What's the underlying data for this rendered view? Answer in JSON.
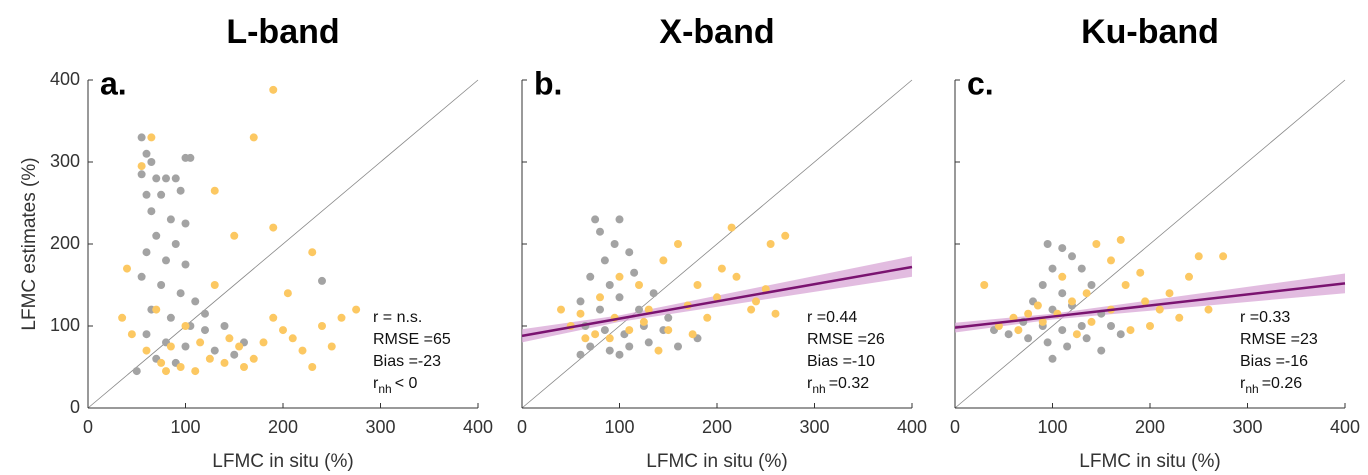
{
  "chart_data": [
    {
      "type": "scatter",
      "title": "L-band",
      "panel_label": "a.",
      "x_label": "LFMC in situ (%)",
      "y_label": "LFMC estimates (%)",
      "xlim": [
        0,
        400
      ],
      "ylim": [
        0,
        400
      ],
      "xticks": [
        0,
        100,
        200,
        300,
        400
      ],
      "yticks": [
        0,
        100,
        200,
        300,
        400
      ],
      "show_ytick_labels": true,
      "series": [
        {
          "color": "#a3a3a3",
          "x": [
            55,
            60,
            65,
            55,
            70,
            80,
            90,
            100,
            105,
            60,
            75,
            95,
            65,
            85,
            100,
            70,
            90,
            60,
            80,
            100,
            55,
            75,
            95,
            110,
            65,
            85,
            105,
            120,
            60,
            80,
            100,
            130,
            70,
            90,
            150,
            140,
            120,
            50,
            240,
            160
          ],
          "y": [
            330,
            310,
            300,
            285,
            280,
            280,
            280,
            305,
            305,
            260,
            260,
            265,
            240,
            230,
            225,
            210,
            200,
            190,
            180,
            175,
            160,
            150,
            140,
            130,
            120,
            110,
            100,
            95,
            90,
            80,
            75,
            70,
            60,
            55,
            65,
            100,
            115,
            45,
            155,
            80
          ]
        },
        {
          "color": "#fcc862",
          "x": [
            40,
            55,
            190,
            170,
            65,
            130,
            230,
            190,
            150,
            35,
            45,
            60,
            75,
            95,
            110,
            125,
            140,
            160,
            180,
            200,
            220,
            240,
            260,
            275,
            250,
            210,
            170,
            115,
            100,
            85,
            70,
            130,
            155,
            190,
            230,
            80,
            145,
            205
          ],
          "y": [
            170,
            295,
            388,
            330,
            330,
            265,
            190,
            220,
            210,
            110,
            90,
            70,
            55,
            50,
            45,
            60,
            55,
            50,
            80,
            95,
            70,
            100,
            110,
            120,
            75,
            85,
            60,
            80,
            100,
            75,
            120,
            150,
            75,
            110,
            50,
            45,
            85,
            140
          ]
        }
      ],
      "stats": [
        "r = n.s.",
        "RMSE =65",
        "Bias =-23"
      ],
      "rnh": {
        "symbol": "r",
        "sub": "nh",
        "text": "< 0"
      }
    },
    {
      "type": "scatter",
      "title": "X-band",
      "panel_label": "b.",
      "x_label": "LFMC in situ (%)",
      "xlim": [
        0,
        400
      ],
      "ylim": [
        0,
        400
      ],
      "xticks": [
        0,
        100,
        200,
        300,
        400
      ],
      "yticks": [
        0,
        100,
        200,
        300,
        400
      ],
      "show_ytick_labels": false,
      "series": [
        {
          "color": "#a3a3a3",
          "x": [
            75,
            80,
            100,
            95,
            110,
            85,
            70,
            90,
            115,
            60,
            80,
            100,
            120,
            135,
            65,
            85,
            105,
            125,
            145,
            70,
            90,
            110,
            130,
            160,
            60,
            100,
            150,
            180
          ],
          "y": [
            230,
            215,
            230,
            200,
            190,
            180,
            160,
            150,
            165,
            130,
            120,
            135,
            120,
            140,
            100,
            95,
            90,
            100,
            95,
            75,
            70,
            75,
            80,
            75,
            65,
            65,
            110,
            85
          ]
        },
        {
          "color": "#fcc862",
          "x": [
            40,
            50,
            60,
            75,
            90,
            110,
            130,
            145,
            160,
            180,
            200,
            220,
            240,
            255,
            270,
            215,
            235,
            190,
            170,
            150,
            125,
            95,
            80,
            100,
            120,
            65,
            175,
            205,
            250,
            140,
            260
          ],
          "y": [
            120,
            100,
            115,
            90,
            85,
            95,
            120,
            180,
            200,
            150,
            135,
            160,
            130,
            200,
            210,
            220,
            120,
            110,
            125,
            95,
            105,
            110,
            135,
            160,
            150,
            85,
            90,
            170,
            145,
            70,
            115
          ]
        }
      ],
      "fit": {
        "color": "#7a1370",
        "band_color": "#d8a6d6",
        "x": [
          0,
          100,
          400
        ],
        "y": [
          88,
          109,
          172
        ],
        "ci_low": [
          80,
          105,
          160
        ],
        "ci_high": [
          96,
          113,
          185
        ]
      },
      "stats": [
        "r =0.44",
        "RMSE =26",
        "Bias =-10"
      ],
      "rnh": {
        "symbol": "r",
        "sub": "nh",
        "text": "=0.32"
      }
    },
    {
      "type": "scatter",
      "title": "Ku-band",
      "panel_label": "c.",
      "x_label": "LFMC in situ (%)",
      "xlim": [
        0,
        400
      ],
      "ylim": [
        0,
        400
      ],
      "xticks": [
        0,
        100,
        200,
        300,
        400
      ],
      "yticks": [
        0,
        100,
        200,
        300,
        400
      ],
      "show_ytick_labels": false,
      "series": [
        {
          "color": "#a3a3a3",
          "x": [
            95,
            110,
            120,
            100,
            130,
            90,
            110,
            140,
            80,
            100,
            120,
            150,
            70,
            90,
            110,
            130,
            160,
            75,
            95,
            115,
            135,
            55,
            100,
            150,
            170,
            40
          ],
          "y": [
            200,
            195,
            185,
            170,
            170,
            150,
            140,
            150,
            130,
            120,
            125,
            115,
            105,
            100,
            95,
            100,
            100,
            85,
            80,
            75,
            85,
            90,
            60,
            70,
            90,
            95
          ]
        },
        {
          "color": "#fcc862",
          "x": [
            30,
            45,
            60,
            75,
            90,
            105,
            120,
            135,
            145,
            160,
            175,
            190,
            210,
            230,
            250,
            275,
            240,
            220,
            200,
            180,
            160,
            140,
            125,
            110,
            85,
            65,
            195,
            260,
            170
          ],
          "y": [
            150,
            100,
            110,
            115,
            105,
            115,
            130,
            140,
            200,
            180,
            150,
            165,
            120,
            110,
            185,
            185,
            160,
            140,
            100,
            95,
            120,
            105,
            90,
            160,
            125,
            95,
            130,
            120,
            205
          ]
        }
      ],
      "fit": {
        "color": "#7a1370",
        "band_color": "#d8a6d6",
        "x": [
          0,
          100,
          400
        ],
        "y": [
          98,
          111.5,
          152
        ],
        "ci_low": [
          92,
          108,
          140
        ],
        "ci_high": [
          104,
          115,
          164
        ]
      },
      "stats": [
        "r =0.33",
        "RMSE =23",
        "Bias =-16"
      ],
      "rnh": {
        "symbol": "r",
        "sub": "nh",
        "text": "=0.26"
      }
    }
  ]
}
